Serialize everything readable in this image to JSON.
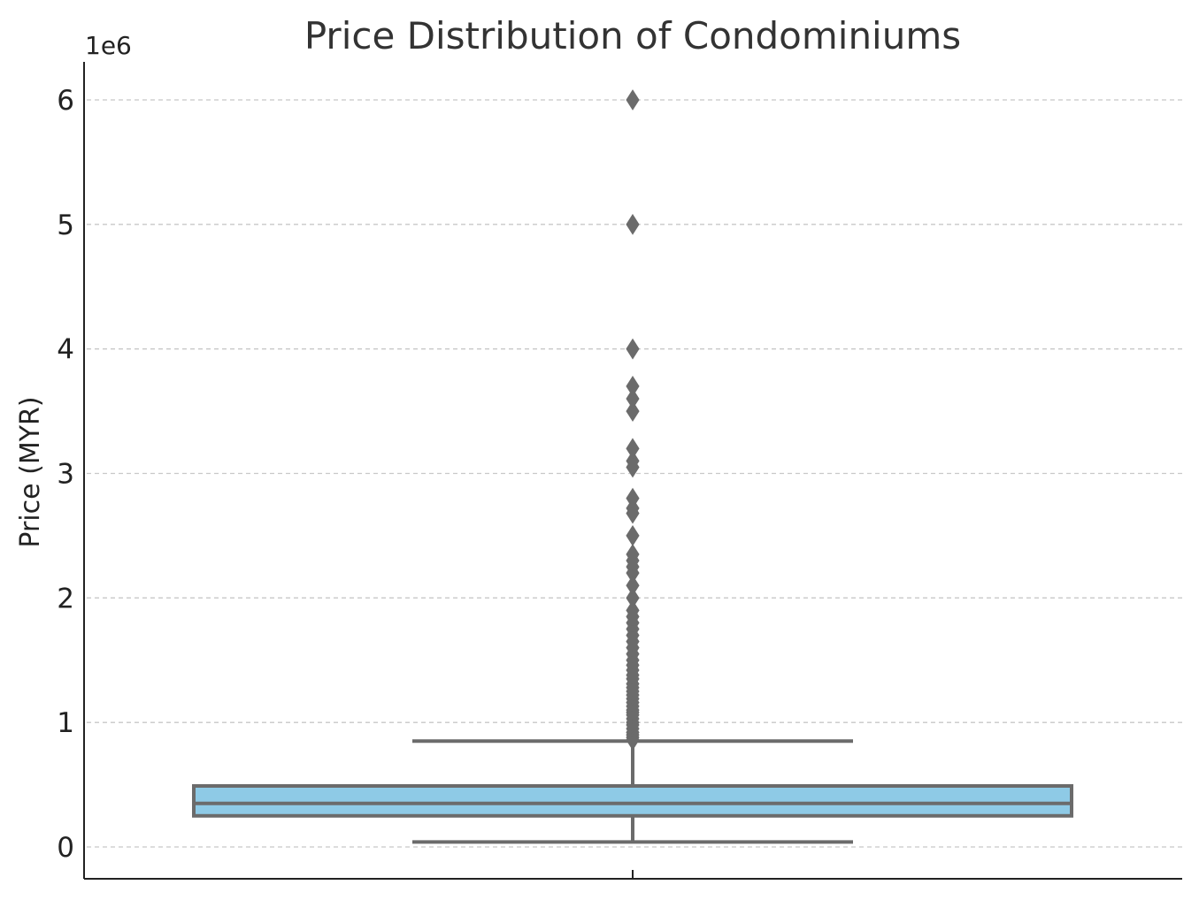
{
  "chart_data": {
    "type": "box",
    "title": "Price Distribution of Condominiums",
    "xlabel": "",
    "ylabel": "Price (MYR)",
    "y_offset_label": "1e6",
    "y_ticks": [
      0,
      1,
      2,
      3,
      4,
      5,
      6
    ],
    "y_tick_labels": [
      "0",
      "1",
      "2",
      "3",
      "4",
      "5",
      "6"
    ],
    "ylim": [
      -0.26,
      6.31
    ],
    "grid": "horizontal dashed",
    "box": {
      "whisker_low": 0.04,
      "q1": 0.25,
      "median": 0.35,
      "q3": 0.49,
      "whisker_high": 0.85
    },
    "outliers": [
      0.86,
      0.88,
      0.9,
      0.92,
      0.95,
      0.98,
      1.0,
      1.03,
      1.06,
      1.08,
      1.1,
      1.13,
      1.16,
      1.19,
      1.22,
      1.25,
      1.28,
      1.31,
      1.35,
      1.38,
      1.42,
      1.46,
      1.5,
      1.55,
      1.6,
      1.65,
      1.7,
      1.75,
      1.8,
      1.85,
      1.9,
      2.0,
      2.1,
      2.2,
      2.25,
      2.3,
      2.35,
      2.5,
      2.68,
      2.72,
      2.8,
      3.05,
      3.1,
      3.2,
      3.5,
      3.6,
      3.7,
      4.0,
      5.0,
      6.0
    ],
    "colors": {
      "box_fill": "#8ecae6",
      "lines": "#6b6b6b",
      "grid": "#c8c8c8",
      "axis": "#222222",
      "text": "#333333"
    }
  }
}
